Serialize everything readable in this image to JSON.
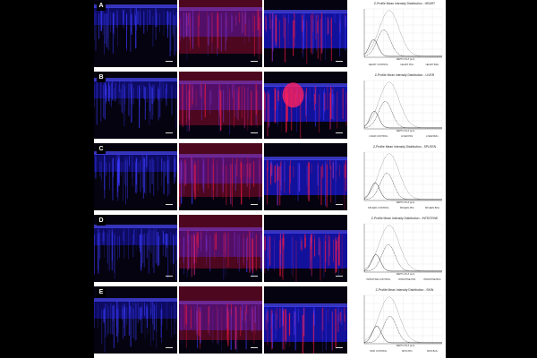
{
  "panels": [
    {
      "letter": "A",
      "title": "Z-Profile Mean Intensity Distribution - HEART",
      "legend": [
        "HEART CONTROL",
        "HEART PD1",
        "HEART B2G"
      ]
    },
    {
      "letter": "B",
      "title": "Z-Profile Mean Intensity Distribution - LIVER",
      "legend": [
        "LIVER CONTROL",
        "LIVER PD1",
        "LIVER B2G"
      ]
    },
    {
      "letter": "C",
      "title": "Z-Profile Mean Intensity Distribution - SPLEEN",
      "legend": [
        "SPLEEN CONTROL",
        "SPLEEN PD1",
        "SPLEEN B2G"
      ]
    },
    {
      "letter": "D",
      "title": "Z-Profile Mean Intensity Distribution - INTESTINE",
      "legend": [
        "INTESTINE CONTROL",
        "INTESTINE PD1",
        "INTESTINE B2G"
      ]
    },
    {
      "letter": "E",
      "title": "Z-Profile Mean Intensity Distribution - SKIN",
      "legend": [
        "SKIN CONTROL",
        "SKIN PD1",
        "SKIN B2G"
      ]
    }
  ],
  "xlabel": "DEPTH IN Z (µm)",
  "colors": {
    "blue": "#2a2aff",
    "red": "#ff1a40",
    "curve": "#333333"
  }
}
